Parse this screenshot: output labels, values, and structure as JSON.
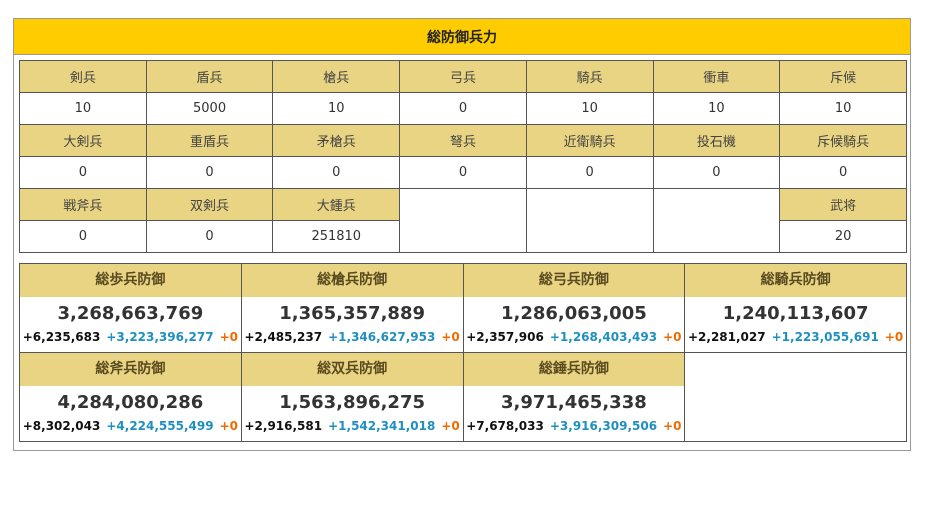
{
  "title": "総防御兵力",
  "units": {
    "row1": {
      "names": [
        "剣兵",
        "盾兵",
        "槍兵",
        "弓兵",
        "騎兵",
        "衝車",
        "斥候"
      ],
      "values": [
        "10",
        "5000",
        "10",
        "0",
        "10",
        "10",
        "10"
      ]
    },
    "row2": {
      "names": [
        "大剣兵",
        "重盾兵",
        "矛槍兵",
        "弩兵",
        "近衛騎兵",
        "投石機",
        "斥候騎兵"
      ],
      "values": [
        "0",
        "0",
        "0",
        "0",
        "0",
        "0",
        "0"
      ]
    },
    "row3": {
      "names": [
        "戦斧兵",
        "双剣兵",
        "大鍾兵",
        "",
        "",
        "",
        "武将"
      ],
      "values": [
        "0",
        "0",
        "251810",
        "",
        "",
        "",
        "20"
      ]
    }
  },
  "defense": [
    {
      "title": "総歩兵防御",
      "total": "3,268,663,769",
      "base": "+6,235,683",
      "bonus": "+3,223,396,277",
      "extra": "+0"
    },
    {
      "title": "総槍兵防御",
      "total": "1,365,357,889",
      "base": "+2,485,237",
      "bonus": "+1,346,627,953",
      "extra": "+0"
    },
    {
      "title": "総弓兵防御",
      "total": "1,286,063,005",
      "base": "+2,357,906",
      "bonus": "+1,268,403,493",
      "extra": "+0"
    },
    {
      "title": "総騎兵防御",
      "total": "1,240,113,607",
      "base": "+2,281,027",
      "bonus": "+1,223,055,691",
      "extra": "+0"
    },
    {
      "title": "総斧兵防御",
      "total": "4,284,080,286",
      "base": "+8,302,043",
      "bonus": "+4,224,555,499",
      "extra": "+0"
    },
    {
      "title": "総双兵防御",
      "total": "1,563,896,275",
      "base": "+2,916,581",
      "bonus": "+1,542,341,018",
      "extra": "+0"
    },
    {
      "title": "総錘兵防御",
      "total": "3,971,465,338",
      "base": "+7,678,033",
      "bonus": "+3,916,309,506",
      "extra": "+0"
    }
  ],
  "colors": {
    "header": "#ffcc00",
    "cell_header": "#e8d482",
    "bonus": "#1f8fc0",
    "extra": "#f06a00"
  }
}
